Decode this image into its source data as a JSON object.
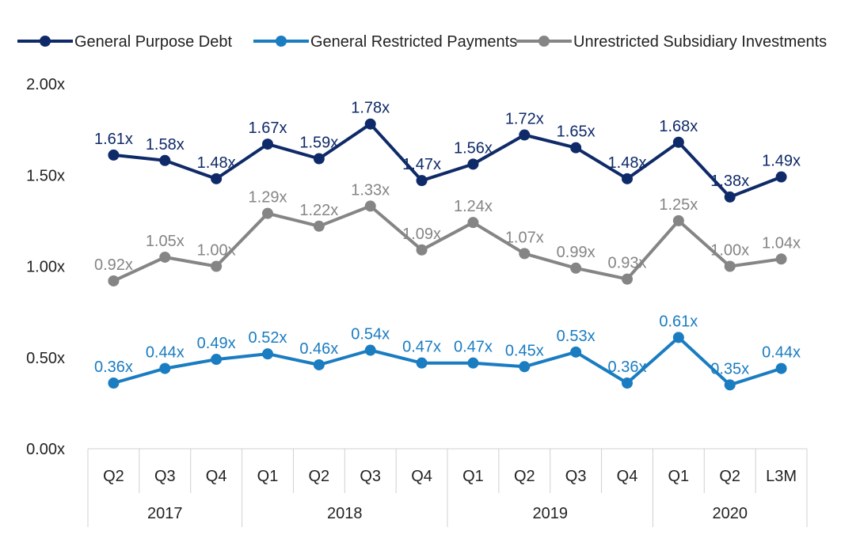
{
  "chart_data": {
    "type": "line",
    "categories": [
      "Q2",
      "Q3",
      "Q4",
      "Q1",
      "Q2",
      "Q3",
      "Q4",
      "Q1",
      "Q2",
      "Q3",
      "Q4",
      "Q1",
      "Q2",
      "L3M"
    ],
    "year_groups": [
      {
        "label": "2017",
        "count": 3
      },
      {
        "label": "2018",
        "count": 4
      },
      {
        "label": "2019",
        "count": 4
      },
      {
        "label": "2020",
        "count": 3
      }
    ],
    "y_ticks": [
      "0.00x",
      "0.50x",
      "1.00x",
      "1.50x",
      "2.00x"
    ],
    "ylim": [
      0,
      2
    ],
    "legend_position": "top",
    "grid": false,
    "series": [
      {
        "name": "General Purpose Debt",
        "color": "#0f2a68",
        "values": [
          1.61,
          1.58,
          1.48,
          1.67,
          1.59,
          1.78,
          1.47,
          1.56,
          1.72,
          1.65,
          1.48,
          1.68,
          1.38,
          1.49
        ],
        "labels": [
          "1.61x",
          "1.58x",
          "1.48x",
          "1.67x",
          "1.59x",
          "1.78x",
          "1.47x",
          "1.56x",
          "1.72x",
          "1.65x",
          "1.48x",
          "1.68x",
          "1.38x",
          "1.49x"
        ]
      },
      {
        "name": "General Restricted Payments",
        "color": "#1a7cc1",
        "values": [
          0.36,
          0.44,
          0.49,
          0.52,
          0.46,
          0.54,
          0.47,
          0.47,
          0.45,
          0.53,
          0.36,
          0.61,
          0.35,
          0.44
        ],
        "labels": [
          "0.36x",
          "0.44x",
          "0.49x",
          "0.52x",
          "0.46x",
          "0.54x",
          "0.47x",
          "0.47x",
          "0.45x",
          "0.53x",
          "0.36x",
          "0.61x",
          "0.35x",
          "0.44x"
        ]
      },
      {
        "name": "Unrestricted Subsidiary Investments",
        "color": "#858585",
        "values": [
          0.92,
          1.05,
          1.0,
          1.29,
          1.22,
          1.33,
          1.09,
          1.24,
          1.07,
          0.99,
          0.93,
          1.25,
          1.0,
          1.04
        ],
        "labels": [
          "0.92x",
          "1.05x",
          "1.00x",
          "1.29x",
          "1.22x",
          "1.33x",
          "1.09x",
          "1.24x",
          "1.07x",
          "0.99x",
          "0.93x",
          "1.25x",
          "1.00x",
          "1.04x"
        ]
      }
    ]
  }
}
